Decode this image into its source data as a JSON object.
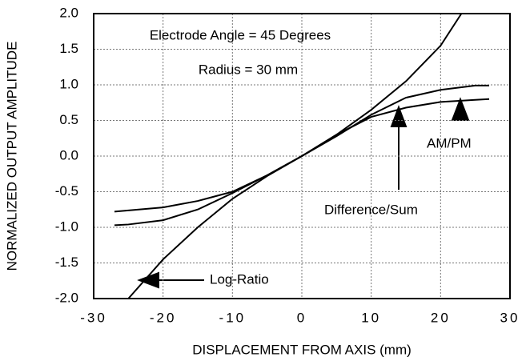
{
  "chart_data": {
    "type": "line",
    "xlabel": "DISPLACEMENT FROM AXIS (mm)",
    "ylabel": "NORMALIZED OUTPUT AMPLITUDE",
    "xlim": [
      -30,
      30
    ],
    "ylim": [
      -2,
      2
    ],
    "xticks": [
      -30,
      -20,
      -10,
      0,
      10,
      20,
      30
    ],
    "yticks": [
      {
        "value": 2,
        "label": "2.0"
      },
      1.5,
      {
        "value": 1,
        "label": "1.0"
      },
      0.5,
      {
        "value": 0,
        "label": "0.0"
      },
      -0.5,
      {
        "value": -1,
        "label": "-1.0"
      },
      -1.5,
      {
        "value": -2,
        "label": "-2.0"
      }
    ],
    "grid": true,
    "series": [
      {
        "name": "Log-Ratio",
        "color": "#000000",
        "x": [
          -25,
          -20,
          -15,
          -10,
          -5,
          0,
          5,
          10,
          15,
          20,
          23
        ],
        "values": [
          -2.0,
          -1.45,
          -1.0,
          -0.6,
          -0.28,
          0,
          0.3,
          0.65,
          1.05,
          1.55,
          2.0
        ]
      },
      {
        "name": "Difference/Sum",
        "color": "#000000",
        "x": [
          -27,
          -25,
          -20,
          -15,
          -10,
          -5,
          0,
          5,
          10,
          15,
          20,
          25,
          27
        ],
        "values": [
          -0.97,
          -0.96,
          -0.9,
          -0.75,
          -0.52,
          -0.27,
          0,
          0.28,
          0.58,
          0.82,
          0.93,
          0.99,
          0.99
        ]
      },
      {
        "name": "AM/PM",
        "color": "#000000",
        "x": [
          -27,
          -20,
          -15,
          -10,
          -5,
          0,
          5,
          10,
          15,
          20,
          25,
          27
        ],
        "values": [
          -0.78,
          -0.72,
          -0.63,
          -0.5,
          -0.27,
          0,
          0.3,
          0.55,
          0.68,
          0.76,
          0.79,
          0.8
        ]
      }
    ],
    "annotations": [
      "Electrode Angle = 45 Degrees",
      "Radius = 30 mm"
    ]
  }
}
